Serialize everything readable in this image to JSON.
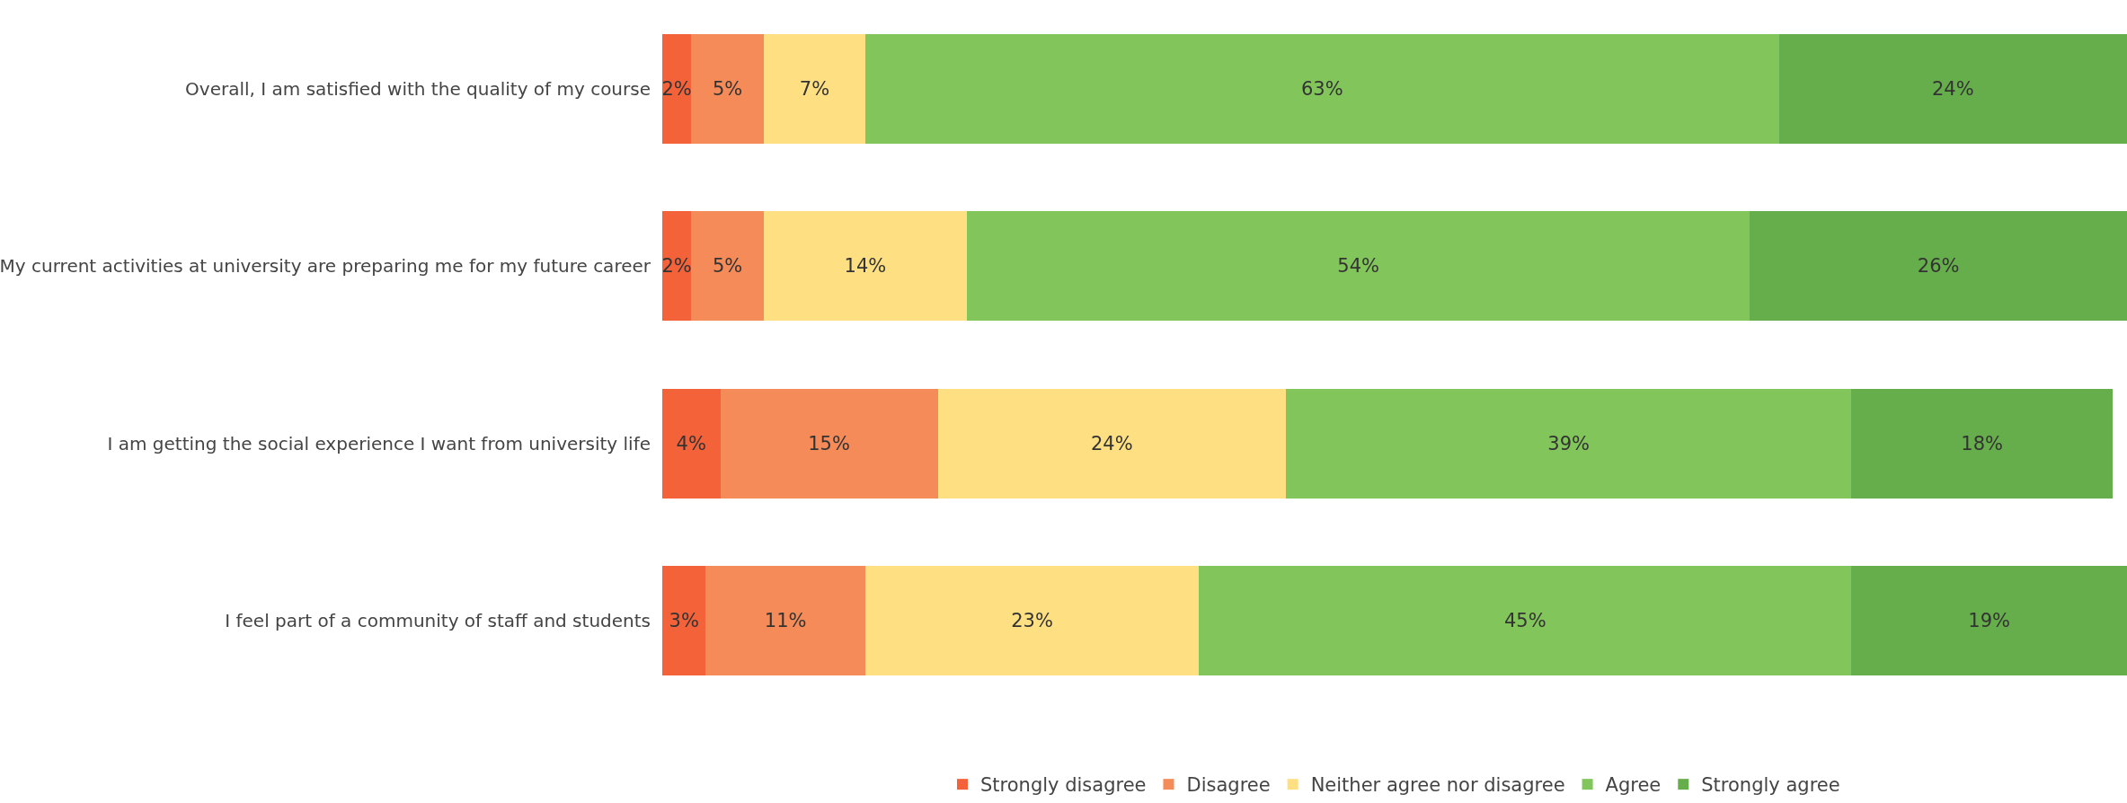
{
  "chart_data": {
    "type": "bar",
    "orientation": "horizontal",
    "stacked": true,
    "legend": "bottom",
    "tick_labels": "y",
    "categories": [
      "Overall, I am satisfied with the quality of my course",
      "My current activities at university are preparing me for my future career",
      "I am getting the social experience I want from university life",
      "I feel part of a community of staff and students"
    ],
    "series": [
      {
        "name": "Strongly disagree",
        "color": "#f4623a",
        "values": [
          2,
          2,
          4,
          3
        ],
        "value_labels": [
          "2%",
          "2%",
          "4%",
          "3%"
        ]
      },
      {
        "name": "Disagree",
        "color": "#f58b59",
        "values": [
          5,
          5,
          15,
          11
        ],
        "value_labels": [
          "5%",
          "5%",
          "15%",
          "11%"
        ]
      },
      {
        "name": "Neither agree nor disagree",
        "color": "#fee083",
        "values": [
          7,
          14,
          24,
          23
        ],
        "value_labels": [
          "7%",
          "14%",
          "24%",
          "23%"
        ]
      },
      {
        "name": "Agree",
        "color": "#82c55b",
        "values": [
          63,
          54,
          39,
          45
        ],
        "value_labels": [
          "63%",
          "54%",
          "39%",
          "45%"
        ]
      },
      {
        "name": "Strongly agree",
        "color": "#66ae4b",
        "values": [
          24,
          26,
          18,
          19
        ],
        "value_labels": [
          "24%",
          "26%",
          "18%",
          "19%"
        ]
      }
    ]
  }
}
